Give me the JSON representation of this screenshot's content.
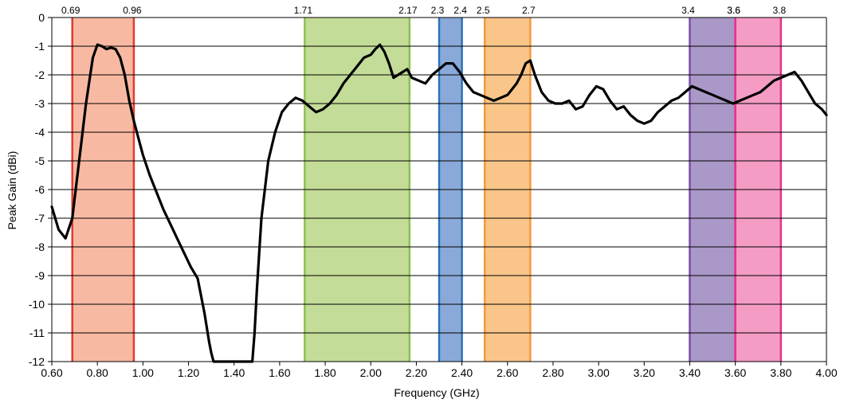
{
  "chart_data": {
    "type": "line",
    "title": "",
    "xlabel": "Frequency (GHz)",
    "ylabel": "Peak Gain (dBi)",
    "xlim": [
      0.6,
      4.0
    ],
    "ylim": [
      -12,
      0
    ],
    "grid": "horizontal",
    "legend": "none",
    "x_tick_labels": [
      "0.60",
      "0.80",
      "1.00",
      "1.20",
      "1.40",
      "1.60",
      "1.80",
      "2.00",
      "2.20",
      "2.40",
      "2.60",
      "2.80",
      "3.00",
      "3.20",
      "3.40",
      "3.60",
      "3.80",
      "4.00"
    ],
    "y_tick_labels": [
      "0",
      "-1",
      "-2",
      "-3",
      "-4",
      "-5",
      "-6",
      "-7",
      "-8",
      "-9",
      "-10",
      "-11",
      "-12"
    ],
    "bands": [
      {
        "start": 0.69,
        "end": 0.96,
        "start_label": "0.69",
        "end_label": "0.96",
        "fill": "#f8b9a2",
        "edge": "#e03a32"
      },
      {
        "start": 1.71,
        "end": 2.17,
        "start_label": "1.71",
        "end_label": "2.17",
        "fill": "#c3dc98",
        "edge": "#8cc255"
      },
      {
        "start": 2.3,
        "end": 2.4,
        "start_label": "2.3",
        "end_label": "2.4",
        "fill": "#8ba9d8",
        "edge": "#2b72b9"
      },
      {
        "start": 2.5,
        "end": 2.7,
        "start_label": "2.5",
        "end_label": "2.7",
        "fill": "#f9c589",
        "edge": "#f39a3c"
      },
      {
        "start": 3.4,
        "end": 3.6,
        "start_label": "3.4",
        "end_label": "3.6",
        "fill": "#aa98c8",
        "edge": "#7a50a4"
      },
      {
        "start": 3.6,
        "end": 3.8,
        "start_label": "3.6",
        "end_label": "3.8",
        "fill": "#f49cc4",
        "edge": "#e8318a"
      }
    ],
    "series": [
      {
        "color": "#000000",
        "x": [
          0.6,
          0.63,
          0.66,
          0.69,
          0.72,
          0.75,
          0.78,
          0.8,
          0.82,
          0.84,
          0.86,
          0.88,
          0.9,
          0.92,
          0.94,
          0.96,
          0.98,
          1.0,
          1.03,
          1.06,
          1.09,
          1.12,
          1.15,
          1.18,
          1.21,
          1.24,
          1.27,
          1.29,
          1.3,
          1.31,
          1.48,
          1.49,
          1.5,
          1.52,
          1.55,
          1.58,
          1.61,
          1.64,
          1.67,
          1.7,
          1.73,
          1.76,
          1.79,
          1.82,
          1.85,
          1.88,
          1.91,
          1.94,
          1.97,
          2.0,
          2.02,
          2.04,
          2.06,
          2.08,
          2.1,
          2.12,
          2.14,
          2.16,
          2.18,
          2.21,
          2.24,
          2.27,
          2.3,
          2.33,
          2.36,
          2.39,
          2.42,
          2.45,
          2.48,
          2.51,
          2.54,
          2.57,
          2.6,
          2.62,
          2.64,
          2.66,
          2.68,
          2.7,
          2.72,
          2.75,
          2.78,
          2.81,
          2.84,
          2.87,
          2.9,
          2.93,
          2.96,
          2.99,
          3.02,
          3.05,
          3.08,
          3.11,
          3.14,
          3.17,
          3.2,
          3.23,
          3.26,
          3.29,
          3.32,
          3.35,
          3.38,
          3.41,
          3.44,
          3.47,
          3.5,
          3.53,
          3.56,
          3.59,
          3.62,
          3.65,
          3.68,
          3.71,
          3.74,
          3.77,
          3.8,
          3.83,
          3.86,
          3.89,
          3.92,
          3.95,
          3.98,
          4.0
        ],
        "y": [
          -6.6,
          -7.4,
          -7.7,
          -7.0,
          -5.0,
          -3.0,
          -1.4,
          -0.95,
          -1.0,
          -1.1,
          -1.05,
          -1.1,
          -1.4,
          -2.0,
          -2.9,
          -3.6,
          -4.2,
          -4.8,
          -5.5,
          -6.1,
          -6.7,
          -7.2,
          -7.7,
          -8.2,
          -8.7,
          -9.1,
          -10.3,
          -11.3,
          -11.7,
          -12.0,
          -12.0,
          -11.0,
          -9.5,
          -7.0,
          -5.0,
          -4.0,
          -3.3,
          -3.0,
          -2.8,
          -2.9,
          -3.1,
          -3.3,
          -3.2,
          -3.0,
          -2.7,
          -2.3,
          -2.0,
          -1.7,
          -1.4,
          -1.3,
          -1.1,
          -0.95,
          -1.2,
          -1.6,
          -2.1,
          -2.0,
          -1.9,
          -1.8,
          -2.1,
          -2.2,
          -2.3,
          -2.0,
          -1.8,
          -1.6,
          -1.6,
          -1.9,
          -2.3,
          -2.6,
          -2.7,
          -2.8,
          -2.9,
          -2.8,
          -2.7,
          -2.5,
          -2.3,
          -2.0,
          -1.6,
          -1.5,
          -2.0,
          -2.6,
          -2.9,
          -3.0,
          -3.0,
          -2.9,
          -3.2,
          -3.1,
          -2.7,
          -2.4,
          -2.5,
          -2.9,
          -3.2,
          -3.1,
          -3.4,
          -3.6,
          -3.7,
          -3.6,
          -3.3,
          -3.1,
          -2.9,
          -2.8,
          -2.6,
          -2.4,
          -2.5,
          -2.6,
          -2.7,
          -2.8,
          -2.9,
          -3.0,
          -2.9,
          -2.8,
          -2.7,
          -2.6,
          -2.4,
          -2.2,
          -2.1,
          -2.0,
          -1.9,
          -2.2,
          -2.6,
          -3.0,
          -3.2,
          -3.4
        ]
      }
    ]
  }
}
